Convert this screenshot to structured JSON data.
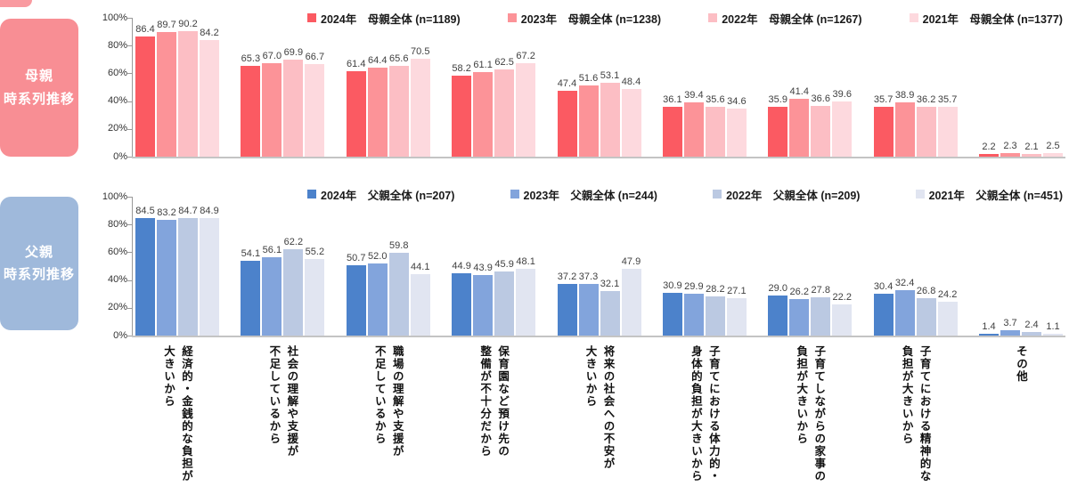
{
  "y_axis": {
    "ticks": [
      "100%",
      "80%",
      "60%",
      "40%",
      "20%",
      "0%"
    ]
  },
  "chart_data": [
    {
      "type": "bar",
      "title": "母親\n時系列推移",
      "panel_color": "#F88E94",
      "bar_colors": [
        "#FB5A62",
        "#FC9398",
        "#FCBEC4",
        "#FDD9DE"
      ],
      "ylim": [
        0,
        100
      ],
      "legend_position": "top",
      "categories": [
        "経済的・金銭的な負担が\n大きいから",
        "社会の理解や支援が\n不足しているから",
        "職場の理解や支援が\n不足しているから",
        "保育園など預け先の\n整備が不十分だから",
        "将来の社会への不安が\n大きいから",
        "子育てにおける体力的・\n身体的負担が大きいから",
        "子育てしながらの家事の\n負担が大きいから",
        "子育てにおける精神的な\n負担が大きいから",
        "その他"
      ],
      "series": [
        {
          "name": "2024年　母親全体 (n=1189)",
          "values": [
            86.4,
            65.3,
            61.4,
            58.2,
            47.4,
            36.1,
            35.9,
            35.7,
            2.2
          ]
        },
        {
          "name": "2023年　母親全体 (n=1238)",
          "values": [
            89.7,
            67.0,
            64.4,
            61.1,
            51.6,
            39.4,
            41.4,
            38.9,
            2.3
          ]
        },
        {
          "name": "2022年　母親全体 (n=1267)",
          "values": [
            90.2,
            69.9,
            65.6,
            62.5,
            53.1,
            35.6,
            36.6,
            36.2,
            2.1
          ]
        },
        {
          "name": "2021年　母親全体 (n=1377)",
          "values": [
            84.2,
            66.7,
            70.5,
            67.2,
            48.4,
            34.6,
            39.6,
            35.7,
            2.5
          ]
        }
      ]
    },
    {
      "type": "bar",
      "title": "父親\n時系列推移",
      "panel_color": "#9FB9DB",
      "bar_colors": [
        "#4C82CB",
        "#82A4DC",
        "#BBC9E2",
        "#E1E5F1"
      ],
      "ylim": [
        0,
        100
      ],
      "legend_position": "top",
      "categories": [
        "経済的・金銭的な負担が\n大きいから",
        "社会の理解や支援が\n不足しているから",
        "職場の理解や支援が\n不足しているから",
        "保育園など預け先の\n整備が不十分だから",
        "将来の社会への不安が\n大きいから",
        "子育てにおける体力的・\n身体的負担が大きいから",
        "子育てしながらの家事の\n負担が大きいから",
        "子育てにおける精神的な\n負担が大きいから",
        "その他"
      ],
      "series": [
        {
          "name": "2024年　父親全体 (n=207)",
          "values": [
            84.5,
            54.1,
            50.7,
            44.9,
            37.2,
            30.9,
            29.0,
            30.4,
            1.4
          ]
        },
        {
          "name": "2023年　父親全体 (n=244)",
          "values": [
            83.2,
            56.1,
            52.0,
            43.9,
            37.3,
            29.9,
            26.2,
            32.4,
            3.7
          ]
        },
        {
          "name": "2022年　父親全体 (n=209)",
          "values": [
            84.7,
            62.2,
            59.8,
            45.9,
            32.1,
            28.2,
            27.8,
            26.8,
            2.4
          ]
        },
        {
          "name": "2021年　父親全体 (n=451)",
          "values": [
            84.9,
            55.2,
            44.1,
            48.1,
            47.9,
            27.1,
            22.2,
            24.2,
            1.1
          ]
        }
      ]
    }
  ]
}
